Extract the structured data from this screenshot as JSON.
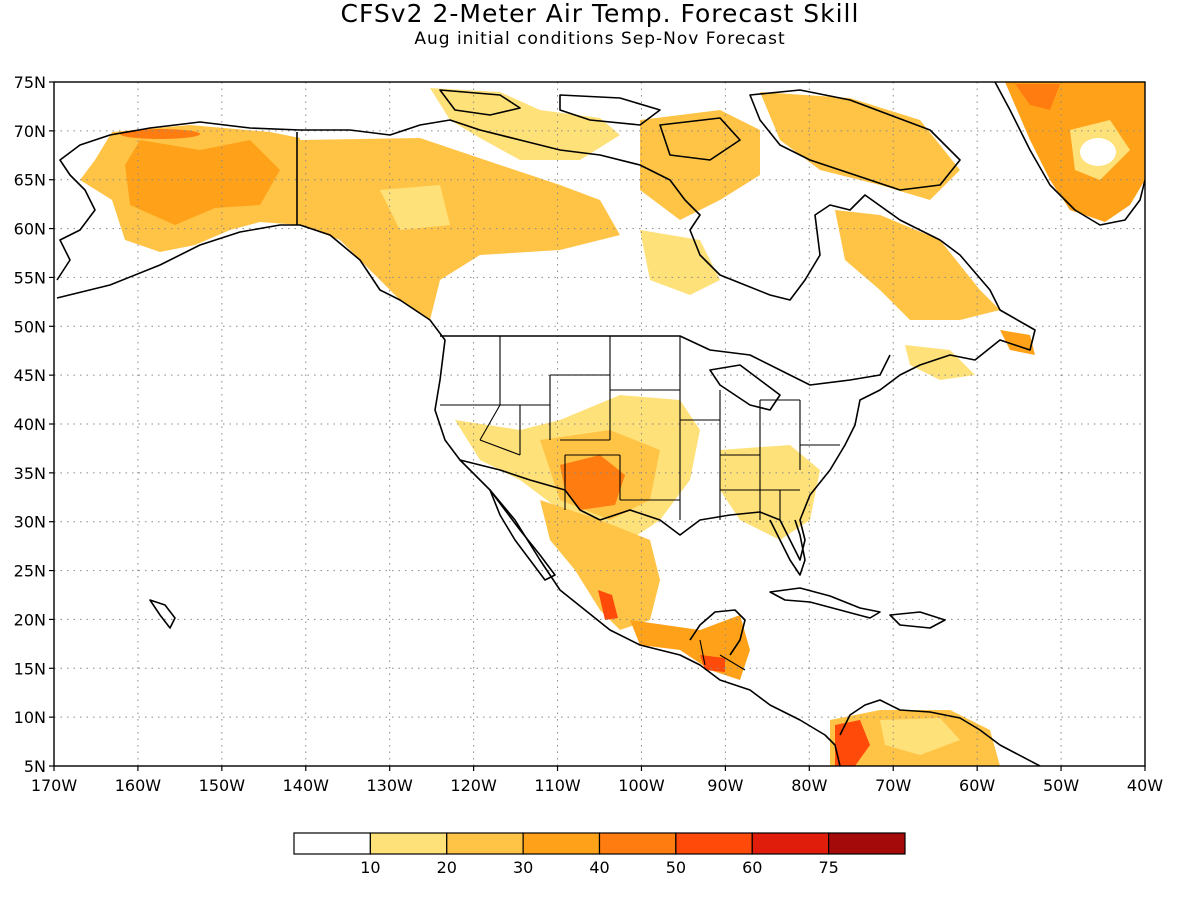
{
  "title": "CFSv2 2-Meter Air Temp. Forecast Skill",
  "subtitle": "Aug initial conditions  Sep-Nov Forecast",
  "map": {
    "lon_range": [
      -170,
      -40
    ],
    "lat_range": [
      5,
      75
    ],
    "gridlines": "dotted",
    "lat_labels": [
      "5N",
      "10N",
      "15N",
      "20N",
      "25N",
      "30N",
      "35N",
      "40N",
      "45N",
      "50N",
      "55N",
      "60N",
      "65N",
      "70N",
      "75N"
    ],
    "lon_labels": [
      "170W",
      "160W",
      "150W",
      "140W",
      "130W",
      "120W",
      "110W",
      "100W",
      "90W",
      "80W",
      "70W",
      "60W",
      "50W",
      "40W"
    ]
  },
  "colorbar": {
    "labels": [
      "10",
      "20",
      "30",
      "40",
      "50",
      "60",
      "75"
    ],
    "colors": [
      "#ffffff",
      "#ffe17a",
      "#ffc446",
      "#ffa21a",
      "#ff7c10",
      "#ff4a0a",
      "#e01c0a",
      "#a50a0a"
    ]
  }
}
